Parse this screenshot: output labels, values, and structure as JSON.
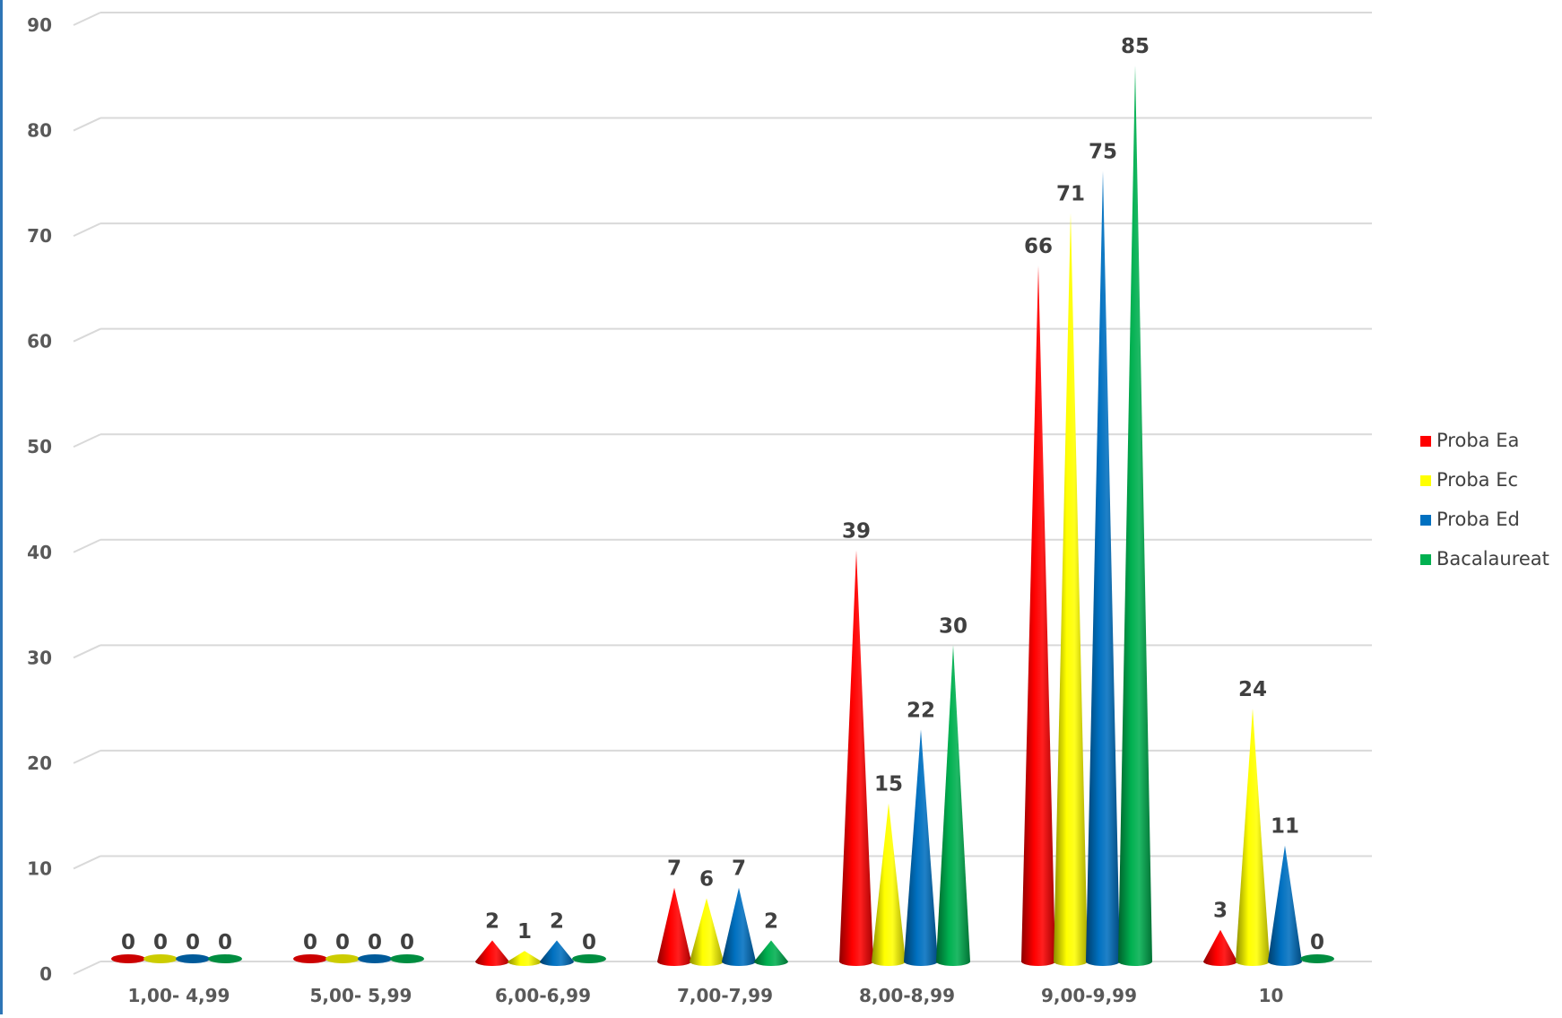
{
  "chart_data": {
    "type": "bar",
    "bar_shape": "cone",
    "categories": [
      "1,00- 4,99",
      "5,00- 5,99",
      "6,00-6,99",
      "7,00-7,99",
      "8,00-8,99",
      "9,00-9,99",
      "10"
    ],
    "series": [
      {
        "name": "Proba Ea",
        "color": "#ff0000",
        "values": [
          0,
          0,
          2,
          7,
          39,
          66,
          3
        ]
      },
      {
        "name": "Proba Ec",
        "color": "#ffff00",
        "values": [
          0,
          0,
          1,
          6,
          15,
          71,
          24
        ]
      },
      {
        "name": "Proba Ed",
        "color": "#0070c0",
        "values": [
          0,
          0,
          2,
          7,
          22,
          75,
          11
        ]
      },
      {
        "name": "Bacalaureat",
        "color": "#00b050",
        "values": [
          0,
          0,
          0,
          2,
          30,
          85,
          0
        ]
      }
    ],
    "yticks": [
      0,
      10,
      20,
      30,
      40,
      50,
      60,
      70,
      80,
      90
    ],
    "ylim": [
      0,
      90
    ],
    "grid": true,
    "legend": "right",
    "data_labels": true
  }
}
